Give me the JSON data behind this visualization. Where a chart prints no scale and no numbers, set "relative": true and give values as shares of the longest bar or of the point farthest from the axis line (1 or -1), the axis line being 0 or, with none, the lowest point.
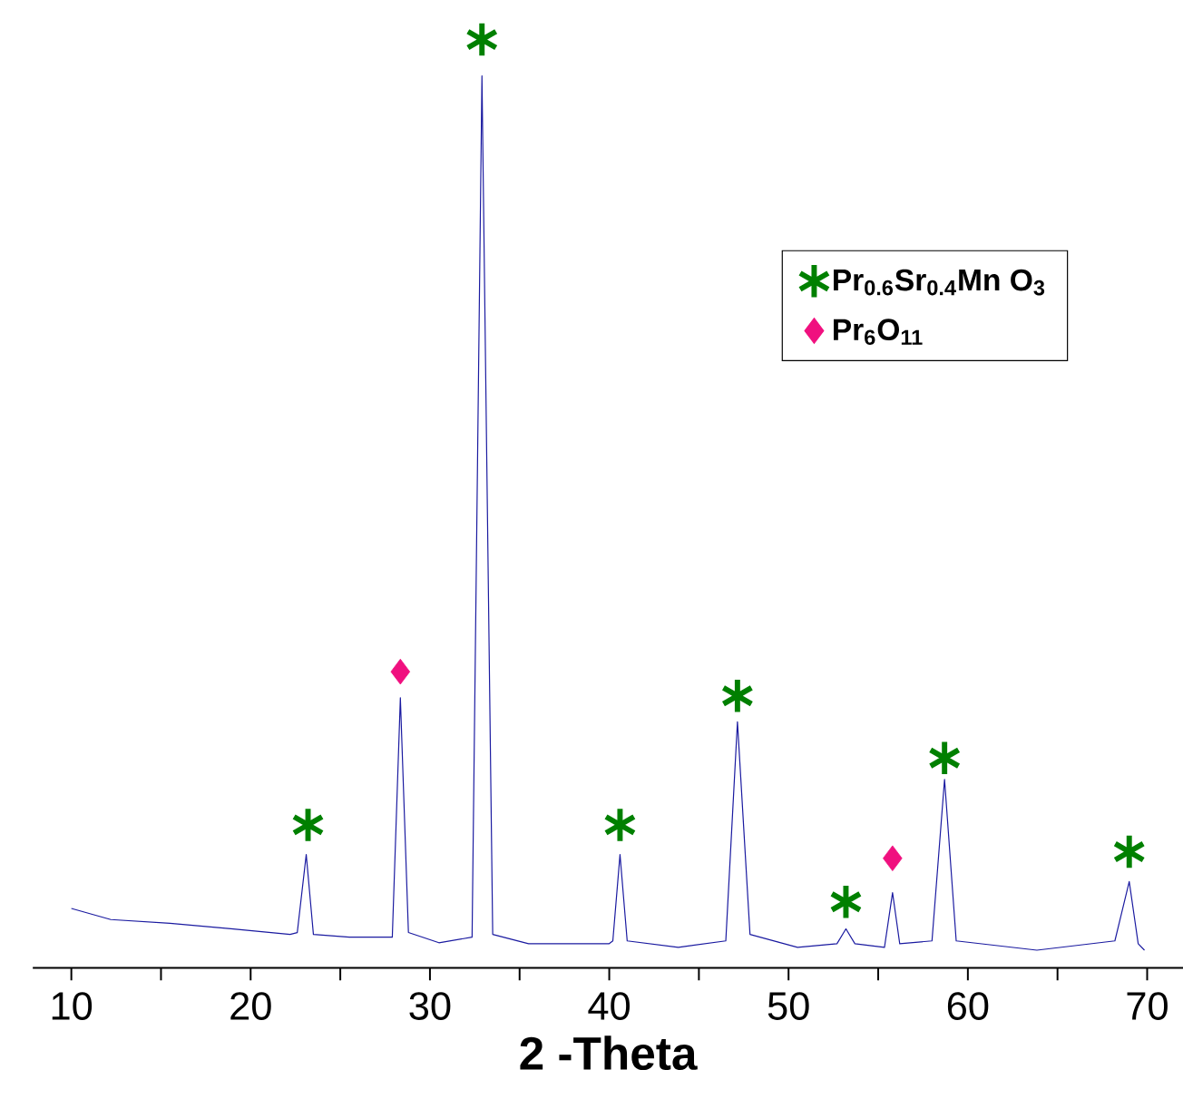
{
  "chart_data": {
    "type": "line",
    "relative": true,
    "xlabel": "2 -Theta",
    "xlim": [
      7.85,
      72
    ],
    "xticks": [
      10,
      {
        "value": 15,
        "label": null
      },
      20,
      {
        "value": 25,
        "label": null
      },
      30,
      {
        "value": 35,
        "label": null
      },
      40,
      {
        "value": 45,
        "label": null
      },
      50,
      {
        "value": 55,
        "label": null
      },
      60,
      {
        "value": 65,
        "label": null
      },
      70
    ],
    "legend": "top right",
    "series": [
      {
        "type": "line",
        "color": "#1a1aa0",
        "x": [
          10.0,
          12.2,
          15.5,
          18.9,
          22.2,
          22.6,
          23.1,
          23.5,
          25.5,
          27.9,
          28.35,
          28.8,
          30.5,
          32.35,
          32.9,
          33.5,
          35.5,
          40.0,
          40.2,
          40.6,
          41.0,
          43.85,
          46.5,
          47.15,
          47.85,
          50.5,
          52.7,
          53.2,
          53.7,
          55.35,
          55.8,
          56.2,
          58.0,
          58.7,
          59.35,
          63.85,
          68.2,
          69.0,
          69.5,
          69.85
        ],
        "values": [
          0.064,
          0.052,
          0.048,
          0.042,
          0.036,
          0.038,
          0.122,
          0.036,
          0.033,
          0.033,
          0.291,
          0.038,
          0.027,
          0.033,
          0.961,
          0.036,
          0.026,
          0.026,
          0.029,
          0.122,
          0.029,
          0.022,
          0.029,
          0.265,
          0.036,
          0.022,
          0.026,
          0.042,
          0.026,
          0.022,
          0.081,
          0.026,
          0.029,
          0.203,
          0.029,
          0.019,
          0.029,
          0.093,
          0.026,
          0.019
        ]
      },
      {
        "type": "scatter",
        "name": "Pr$_{0.6}$Sr$_{0.4}$Mn O$_{3}$",
        "marker": "cross",
        "color": "#008000",
        "x": [
          23.2,
          32.9,
          40.6,
          47.15,
          53.2,
          58.7,
          69.0
        ],
        "values": [
          0.154,
          1.0,
          0.154,
          0.293,
          0.071,
          0.226,
          0.125
        ]
      },
      {
        "type": "scatter",
        "name": "Pr$_{6}$O$_{11}$",
        "marker": "diamond",
        "color": "#f0107f",
        "x": [
          28.35,
          55.8
        ],
        "values": [
          0.319,
          0.118
        ]
      }
    ]
  }
}
